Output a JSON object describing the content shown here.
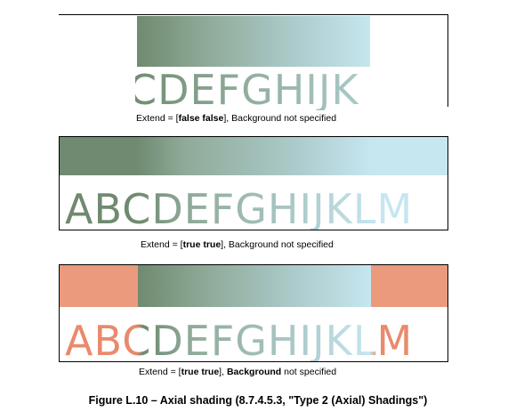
{
  "panels": [
    {
      "letters": "CDEFGHIJK",
      "caption_prefix": "Extend = [",
      "caption_bold": "false false",
      "caption_suffix": "], Background not specified"
    },
    {
      "letters": "ABCDEFGHIJKLM",
      "caption_prefix": "Extend = [",
      "caption_bold": "true true",
      "caption_suffix": "], Background not specified"
    },
    {
      "letters": "ABCDEFGHIJKLM",
      "caption_prefix": "Extend = [",
      "caption_bold": "true true",
      "caption_mid": "], ",
      "caption_bold2": "Background",
      "caption_suffix": " not specified"
    }
  ],
  "figure_caption": "Figure L.10 –  Axial shading (8.7.4.5.3, \"Type 2 (Axial) Shadings\")",
  "colors": {
    "gradient_start": "#6f8a70",
    "gradient_end": "#c6e6f0",
    "background_salmon": "#eb9a7e",
    "letter_salmon": "#e98a6c"
  }
}
